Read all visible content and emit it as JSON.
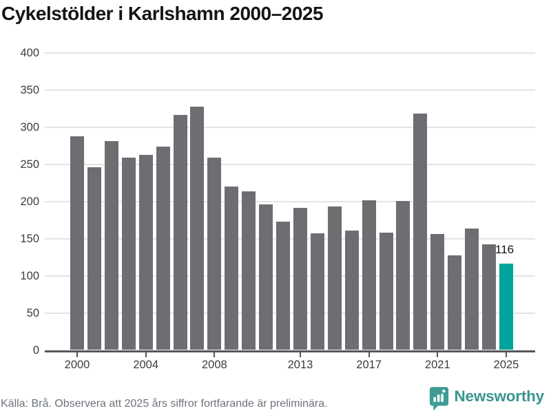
{
  "title": "Cykelstölder i Karlshamn 2000–2025",
  "footer": {
    "source": "Källa: Brå. Observera att 2025 års siffror fortfarande är preliminära.",
    "brand": "Newsworthy"
  },
  "chart_data": {
    "type": "bar",
    "title": "Cykelstölder i Karlshamn 2000–2025",
    "categories": [
      2000,
      2001,
      2002,
      2003,
      2004,
      2005,
      2006,
      2007,
      2008,
      2009,
      2010,
      2011,
      2012,
      2013,
      2014,
      2015,
      2016,
      2017,
      2018,
      2019,
      2020,
      2021,
      2022,
      2023,
      2024,
      2025
    ],
    "values": [
      288,
      246,
      282,
      259,
      263,
      274,
      317,
      328,
      259,
      220,
      214,
      196,
      173,
      192,
      157,
      193,
      161,
      202,
      158,
      201,
      319,
      156,
      128,
      164,
      142,
      116
    ],
    "xlabel": "",
    "ylabel": "",
    "x_tick_labels": [
      "2000",
      "2004",
      "2008",
      "2013",
      "2017",
      "2021",
      "2025"
    ],
    "x_tick_years": [
      2000,
      2004,
      2008,
      2013,
      2017,
      2021,
      2025
    ],
    "y_ticks": [
      0,
      50,
      100,
      150,
      200,
      250,
      300,
      350,
      400
    ],
    "ylim": [
      0,
      400
    ],
    "grid": true,
    "legend": "none",
    "highlight_category": 2025,
    "highlight_value_label": "116",
    "colors": {
      "bar": "#6d6d72",
      "highlight_bar": "#00a49b",
      "gridline": "#e4e4e4",
      "axis": "#56565b",
      "tick_text": "#3c3c3c",
      "title_text": "#141414",
      "source_text": "#6e737a",
      "brand_teal": "#3a948d"
    }
  }
}
